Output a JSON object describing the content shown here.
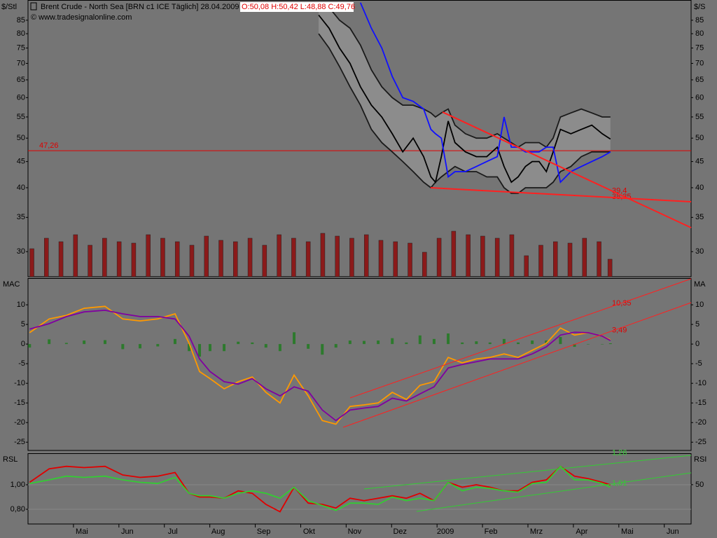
{
  "chart_data": [
    {
      "type": "line",
      "title": "Brent Crude - North Sea [BRN c1 ICE  Täglich] 28.04.2009 -",
      "ohlc": "O:50,08 H:50,42 L:48,88 C:49,76",
      "subtitle": "© www.tradesignalonline.com",
      "ylabel": "$/Stl",
      "y2label": "$/S",
      "log": true,
      "ylim": [
        26.8,
        93.1
      ],
      "yticks": [
        30,
        35,
        40,
        45,
        50,
        55,
        60,
        65,
        70,
        75,
        80,
        85
      ],
      "xlim": [
        -0.185,
        14.405
      ],
      "x": [
        6.21,
        6.44,
        6.67,
        6.9,
        7.13,
        7.37,
        7.6,
        7.83,
        8.06,
        8.29,
        8.52,
        8.68,
        8.78,
        8.91,
        9.06,
        9.21,
        9.44,
        9.68,
        9.91,
        10.14,
        10.29,
        10.45,
        10.6,
        10.76,
        10.91,
        11.06,
        11.22,
        11.37,
        11.53,
        11.76,
        11.99,
        12.22,
        12.45,
        12.63
      ],
      "series": [
        {
          "color": "#1a1a1a",
          "fill": "#8c8c8c",
          "values": [
            92,
            90,
            85,
            82,
            76,
            68,
            63,
            60,
            58,
            58,
            57,
            56,
            55,
            56,
            57,
            53,
            51,
            50,
            50,
            51,
            50,
            49,
            48,
            49,
            49,
            49,
            48,
            50,
            55,
            56,
            57,
            56,
            55,
            55
          ]
        },
        {
          "color": "#1a1a1a",
          "values": [
            80,
            75,
            69,
            63,
            58,
            52,
            49,
            47,
            45,
            43,
            41,
            40,
            41,
            42,
            43,
            44,
            43,
            43,
            42,
            42,
            40,
            39,
            39,
            40,
            40,
            40,
            40,
            41,
            43,
            44,
            46,
            47,
            47,
            47
          ]
        },
        {
          "color": "#000000",
          "values": [
            87,
            82,
            75,
            70,
            63,
            58,
            55,
            51,
            47,
            50,
            46,
            42,
            41,
            46,
            54,
            49,
            47,
            46,
            46,
            48,
            44,
            41,
            42,
            44,
            45,
            45,
            43,
            47,
            52,
            51,
            52,
            53,
            51,
            49.8
          ]
        },
        {
          "color": "#1010ff",
          "values": [
            null,
            null,
            null,
            null,
            92,
            82,
            75,
            66,
            60,
            59,
            57,
            52,
            51,
            50,
            42,
            43,
            43,
            44,
            45,
            46,
            55,
            48,
            48,
            47,
            47,
            47,
            48,
            48,
            41,
            43,
            44,
            45,
            46,
            47
          ]
        }
      ],
      "level": {
        "value": 47.26,
        "label": "47,26",
        "color": "#e00000"
      },
      "annotations": [
        {
          "value": 39.4,
          "label": "39,4"
        },
        {
          "value": 38.35,
          "label": "38,35"
        }
      ],
      "volume": {
        "color": "#8b1a1a",
        "x": [
          -0.1,
          0.22,
          0.54,
          0.86,
          1.18,
          1.5,
          1.82,
          2.14,
          2.46,
          2.78,
          3.1,
          3.42,
          3.74,
          4.06,
          4.38,
          4.7,
          5.02,
          5.34,
          5.66,
          5.98,
          6.3,
          6.62,
          6.94,
          7.26,
          7.58,
          7.9,
          8.22,
          8.54,
          8.86,
          9.18,
          9.5,
          9.82,
          10.14,
          10.46,
          10.78,
          11.1,
          11.42,
          11.74,
          12.06,
          12.38,
          12.62
        ],
        "values": [
          40,
          55,
          50,
          60,
          45,
          55,
          50,
          48,
          60,
          55,
          50,
          45,
          58,
          52,
          50,
          55,
          45,
          60,
          55,
          50,
          62,
          58,
          55,
          60,
          52,
          50,
          48,
          35,
          55,
          65,
          60,
          58,
          55,
          60,
          30,
          45,
          50,
          48,
          55,
          50,
          25
        ]
      }
    },
    {
      "type": "line",
      "ylabel": "MAC",
      "y2label": "MA",
      "ylim": [
        -27.1,
        16.8
      ],
      "yticks": [
        10,
        5,
        0,
        -5,
        -10,
        -15,
        -20,
        -25
      ],
      "xlim": [
        -0.185,
        14.405
      ],
      "x": [
        -0.15,
        0.28,
        0.66,
        1.05,
        1.51,
        1.9,
        2.28,
        2.67,
        3.05,
        3.36,
        3.59,
        3.82,
        4.13,
        4.44,
        4.75,
        5.05,
        5.36,
        5.67,
        5.98,
        6.29,
        6.59,
        6.9,
        7.21,
        7.52,
        7.83,
        8.14,
        8.44,
        8.75,
        9.06,
        9.37,
        9.68,
        9.98,
        10.29,
        10.6,
        10.91,
        11.22,
        11.53,
        11.84,
        12.14,
        12.45,
        12.63
      ],
      "series": [
        {
          "color": "#2d7a2d",
          "kind": "bar",
          "values": [
            -0.9,
            1.2,
            0.3,
            0.9,
            1,
            -1.3,
            -1.1,
            -0.6,
            1.3,
            -1.8,
            -3.2,
            -1.8,
            -1.8,
            0.6,
            0.4,
            -0.9,
            -1.8,
            3,
            -1.2,
            -2.7,
            -0.9,
            0.9,
            0.8,
            0.9,
            1.5,
            0.4,
            2.2,
            1.3,
            2.7,
            0.4,
            0.7,
            0.4,
            1.3,
            0.4,
            0.9,
            0.9,
            1.8,
            -0.7,
            0,
            0,
            0.2
          ]
        },
        {
          "color": "#ff9900",
          "values": [
            2.9,
            6.4,
            7.3,
            9.1,
            9.6,
            6.4,
            5.9,
            6.4,
            7.7,
            0.2,
            -7,
            -8.8,
            -11.4,
            -9.6,
            -8.4,
            -12.3,
            -15,
            -7.9,
            -13.2,
            -19.5,
            -20.4,
            -15.9,
            -15.5,
            -15,
            -12.3,
            -14.1,
            -10.5,
            -9.6,
            -3.4,
            -4.8,
            -3.8,
            -3.4,
            -2.5,
            -3.4,
            -1.6,
            0.2,
            4.1,
            2.3,
            2.9,
            2,
            1.1
          ]
        },
        {
          "color": "#8000a0",
          "values": [
            3.8,
            5.2,
            7,
            8.2,
            8.6,
            7.7,
            7,
            7,
            6.4,
            2,
            -3.8,
            -7,
            -9.6,
            -10.2,
            -8.8,
            -11.4,
            -13.2,
            -10.9,
            -12,
            -16.8,
            -19.5,
            -16.8,
            -16.3,
            -15.9,
            -13.8,
            -14.5,
            -12.7,
            -10.9,
            -6.1,
            -5.2,
            -4.5,
            -3.8,
            -3.8,
            -3.8,
            -2.5,
            -0.7,
            2.3,
            3,
            2.9,
            2,
            0.9
          ]
        }
      ],
      "annotations": [
        {
          "value": 10.35,
          "label": "10,35"
        },
        {
          "value": 3.49,
          "label": "3,49"
        }
      ]
    },
    {
      "type": "line",
      "ylabel": "RSL",
      "y2label": "RSI",
      "ylim": [
        0.68,
        1.257
      ],
      "yticks": [
        {
          "value": 1.0,
          "label": "1,00"
        },
        {
          "value": 0.8,
          "label": "0,80"
        }
      ],
      "y2lim": [
        0,
        90
      ],
      "y2ticks": [
        50
      ],
      "grid": true,
      "xlim": [
        -0.185,
        14.405
      ],
      "xticks": [
        {
          "value": 1,
          "label": "Mai"
        },
        {
          "value": 2,
          "label": "Jun"
        },
        {
          "value": 3,
          "label": "Jul"
        },
        {
          "value": 4,
          "label": "Aug"
        },
        {
          "value": 5,
          "label": "Sep"
        },
        {
          "value": 6,
          "label": "Okt"
        },
        {
          "value": 7,
          "label": "Nov"
        },
        {
          "value": 8,
          "label": "Dez"
        },
        {
          "value": 9,
          "label": "2009"
        },
        {
          "value": 10,
          "label": "Feb"
        },
        {
          "value": 11,
          "label": "Mrz"
        },
        {
          "value": 12,
          "label": "Apr"
        },
        {
          "value": 13,
          "label": "Mai"
        },
        {
          "value": 14,
          "label": "Jun"
        }
      ],
      "x": [
        -0.15,
        0.28,
        0.66,
        1.05,
        1.51,
        1.9,
        2.28,
        2.67,
        3.05,
        3.36,
        3.59,
        3.82,
        4.13,
        4.44,
        4.75,
        5.05,
        5.36,
        5.67,
        5.98,
        6.29,
        6.59,
        6.9,
        7.21,
        7.52,
        7.83,
        8.14,
        8.44,
        8.75,
        9.06,
        9.37,
        9.68,
        9.98,
        10.29,
        10.6,
        10.91,
        11.22,
        11.53,
        11.84,
        12.14,
        12.45,
        12.63
      ],
      "series": [
        {
          "color": "#e00000",
          "values": [
            1.02,
            1.13,
            1.15,
            1.14,
            1.15,
            1.08,
            1.06,
            1.07,
            1.1,
            0.93,
            0.9,
            0.9,
            0.89,
            0.95,
            0.93,
            0.84,
            0.78,
            0.98,
            0.85,
            0.84,
            0.81,
            0.89,
            0.87,
            0.89,
            0.91,
            0.89,
            0.93,
            0.87,
            1.02,
            0.98,
            1.0,
            0.98,
            0.95,
            0.95,
            1.02,
            1.04,
            1.15,
            1.07,
            1.05,
            1.02,
            1.0
          ]
        },
        {
          "color": "#33cc33",
          "values": [
            1.01,
            1.04,
            1.07,
            1.06,
            1.07,
            1.04,
            1.02,
            1.01,
            1.06,
            0.93,
            0.91,
            0.91,
            0.89,
            0.93,
            0.95,
            0.93,
            0.89,
            0.98,
            0.87,
            0.83,
            0.79,
            0.85,
            0.85,
            0.84,
            0.9,
            0.87,
            0.89,
            0.87,
            1.02,
            0.95,
            0.98,
            0.97,
            0.95,
            0.94,
            1.01,
            1.02,
            1.15,
            1.04,
            1.04,
            1.01,
            0.98
          ]
        }
      ],
      "annotations": [
        {
          "value": 1.26,
          "label": "1,26"
        },
        {
          "value": 1.01,
          "label": "1,01"
        }
      ]
    }
  ]
}
